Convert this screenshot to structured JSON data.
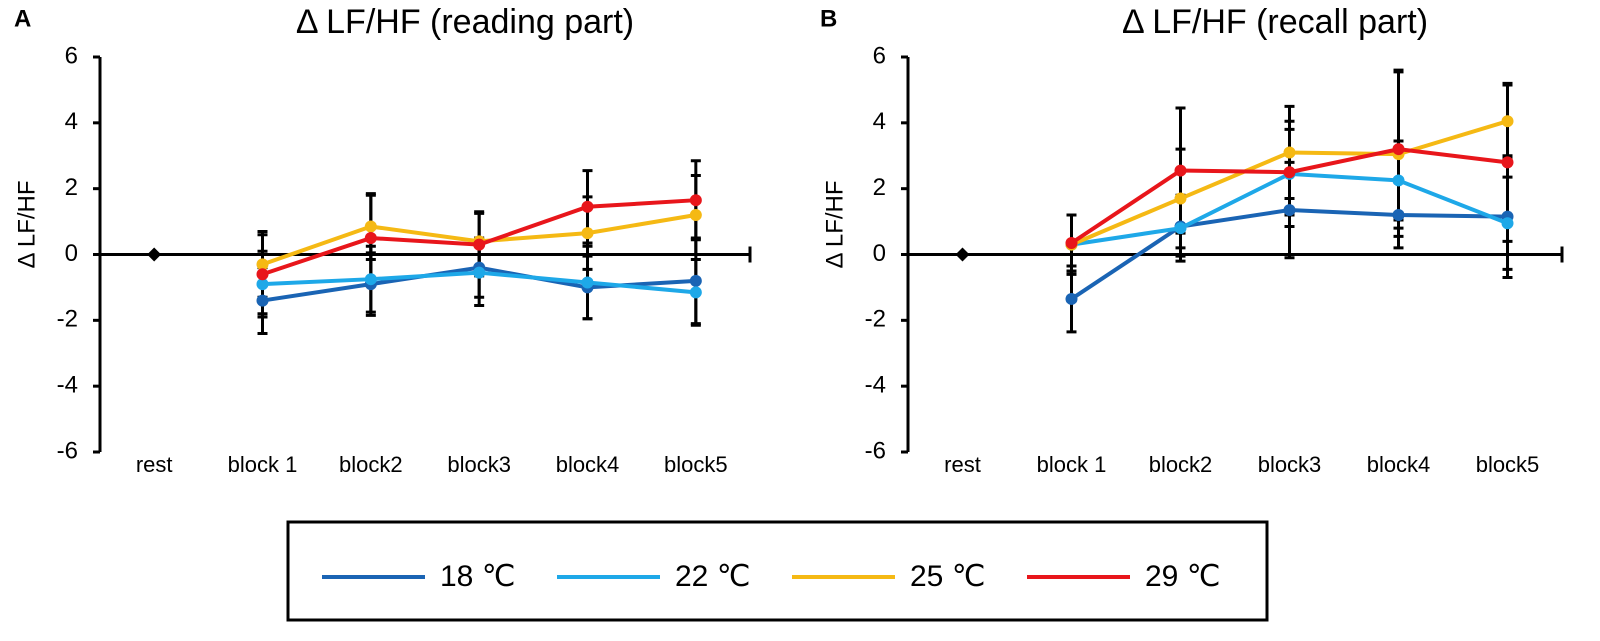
{
  "chart_data": [
    {
      "type": "line",
      "panel": "A",
      "title": "Δ LF/HF (reading part)",
      "y_label": "Δ LF/HF",
      "categories": [
        "rest",
        "block 1",
        "block2",
        "block3",
        "block4",
        "block5"
      ],
      "ylim": [
        -6,
        6
      ],
      "yticks": [
        -6,
        -4,
        -2,
        0,
        2,
        4,
        6
      ],
      "series": [
        {
          "color": "#000000",
          "values": [
            0,
            null,
            null,
            null,
            null,
            null
          ]
        },
        {
          "name": "18 ℃",
          "color": "#1a64b4",
          "values": [
            null,
            -1.4,
            -0.9,
            -0.4,
            -1.0,
            -0.8
          ],
          "errors": [
            null,
            1.0,
            0.95,
            0.9,
            0.95,
            1.3
          ]
        },
        {
          "name": "22 ℃",
          "color": "#1ea8e8",
          "values": [
            null,
            -0.9,
            -0.75,
            -0.55,
            -0.85,
            -1.15
          ],
          "errors": [
            null,
            1.0,
            1.0,
            1.0,
            1.1,
            1.0
          ]
        },
        {
          "name": "25 ℃",
          "color": "#f5b914",
          "values": [
            null,
            -0.3,
            0.85,
            0.4,
            0.65,
            1.2
          ],
          "errors": [
            null,
            1.0,
            1.0,
            0.9,
            1.1,
            1.2
          ]
        },
        {
          "name": "29 ℃",
          "color": "#e8161b",
          "values": [
            null,
            -0.6,
            0.5,
            0.3,
            1.45,
            1.65
          ],
          "errors": [
            null,
            1.2,
            1.3,
            0.95,
            1.1,
            1.2
          ]
        }
      ]
    },
    {
      "type": "line",
      "panel": "B",
      "title": "Δ LF/HF (recall part)",
      "y_label": "Δ LF/HF",
      "categories": [
        "rest",
        "block 1",
        "block2",
        "block3",
        "block4",
        "block5"
      ],
      "ylim": [
        -6,
        6
      ],
      "yticks": [
        -6,
        -4,
        -2,
        0,
        2,
        4,
        6
      ],
      "series": [
        {
          "color": "#000000",
          "values": [
            0,
            null,
            null,
            null,
            null,
            null
          ]
        },
        {
          "color": "#1a64b4",
          "values": [
            null,
            -1.35,
            0.85,
            1.35,
            1.2,
            1.15
          ],
          "errors": [
            null,
            1.0,
            0.9,
            1.45,
            1.0,
            1.85
          ]
        },
        {
          "color": "#1ea8e8",
          "values": [
            null,
            0.3,
            0.8,
            2.45,
            2.25,
            0.95
          ],
          "errors": [
            null,
            0.9,
            1.0,
            1.6,
            1.2,
            1.4
          ]
        },
        {
          "color": "#f5b914",
          "values": [
            null,
            0.3,
            1.7,
            3.1,
            3.05,
            4.05
          ],
          "errors": [
            null,
            0.9,
            1.5,
            1.4,
            2.5,
            1.1
          ]
        },
        {
          "color": "#e8161b",
          "values": [
            null,
            0.35,
            2.55,
            2.5,
            3.2,
            2.8
          ],
          "errors": [
            null,
            0.85,
            1.9,
            1.3,
            2.4,
            2.4
          ]
        }
      ]
    }
  ]
}
